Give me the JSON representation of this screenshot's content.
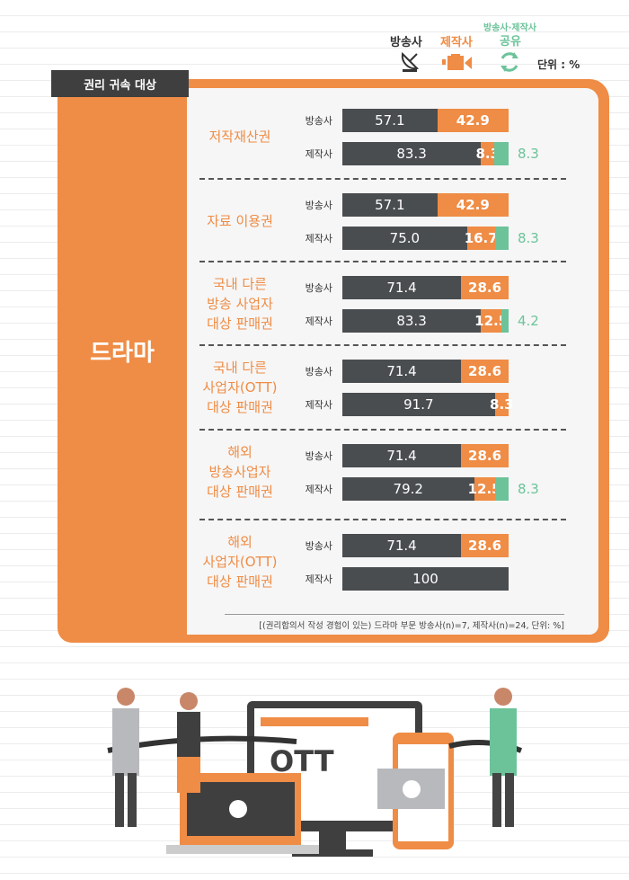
{
  "legend": {
    "broadcaster": "방송사",
    "producer": "제작사",
    "shared_line1": "방송사·제작사",
    "shared_line2": "공유",
    "unit": "단위 : %",
    "icons": {
      "broadcaster": "satellite-dish-icon",
      "producer": "video-camera-icon",
      "shared": "refresh-cycle-icon"
    }
  },
  "tab_label": "권리 귀속 대상",
  "category": "드라마",
  "footnote": "[(권리합의서 작성 경험이 있는) 드라마 부문 방송사(n)=7, 제작사(n)=24, 단위: %]",
  "colors": {
    "broadcaster": "#4a4d50",
    "producer": "#ef8c45",
    "shared": "#6cc39a"
  },
  "illustration_text": "OTT",
  "chart_data": {
    "type": "bar",
    "orientation": "horizontal",
    "stacked": true,
    "xlim": [
      0,
      100
    ],
    "series_names": [
      "방송사",
      "제작사",
      "방송사·제작사 공유"
    ],
    "groups": [
      {
        "label": "저작재산권",
        "rows": [
          {
            "label": "방송사",
            "values": [
              57.1,
              42.9,
              0
            ]
          },
          {
            "label": "제작사",
            "values": [
              83.3,
              8.3,
              8.3
            ]
          }
        ]
      },
      {
        "label": "자료 이용권",
        "rows": [
          {
            "label": "방송사",
            "values": [
              57.1,
              42.9,
              0
            ]
          },
          {
            "label": "제작사",
            "values": [
              75.0,
              16.7,
              8.3
            ]
          }
        ]
      },
      {
        "label": "국내 다른\n방송 사업자\n대상 판매권",
        "rows": [
          {
            "label": "방송사",
            "values": [
              71.4,
              28.6,
              0
            ]
          },
          {
            "label": "제작사",
            "values": [
              83.3,
              12.5,
              4.2
            ]
          }
        ]
      },
      {
        "label": "국내 다른\n사업자(OTT)\n대상 판매권",
        "rows": [
          {
            "label": "방송사",
            "values": [
              71.4,
              28.6,
              0
            ]
          },
          {
            "label": "제작사",
            "values": [
              91.7,
              8.3,
              0
            ]
          }
        ]
      },
      {
        "label": "해외\n방송사업자\n대상 판매권",
        "rows": [
          {
            "label": "방송사",
            "values": [
              71.4,
              28.6,
              0
            ]
          },
          {
            "label": "제작사",
            "values": [
              79.2,
              12.5,
              8.3
            ]
          }
        ]
      },
      {
        "label": "해외\n사업자(OTT)\n대상 판매권",
        "rows": [
          {
            "label": "방송사",
            "values": [
              71.4,
              28.6,
              0
            ]
          },
          {
            "label": "제작사",
            "values": [
              100,
              0,
              0
            ]
          }
        ]
      }
    ]
  }
}
